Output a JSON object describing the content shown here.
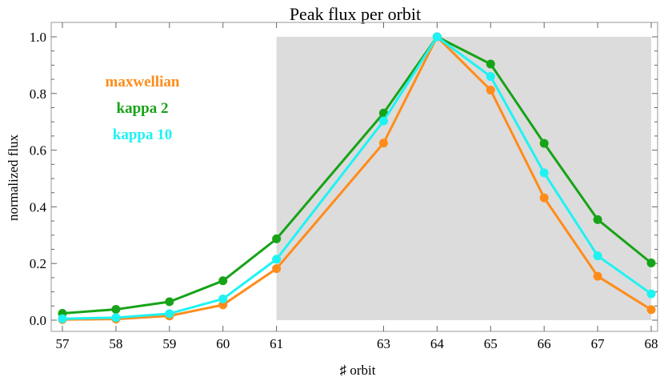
{
  "chart_data": {
    "type": "line",
    "title": "Peak flux per orbit",
    "xlabel": "♯ orbit",
    "ylabel": "normalized flux",
    "x": [
      57,
      58,
      59,
      60,
      61,
      63,
      64,
      65,
      66,
      67,
      68
    ],
    "x_ticks": [
      57,
      58,
      59,
      60,
      61,
      63,
      64,
      65,
      66,
      67,
      68
    ],
    "y_ticks": [
      "0.0",
      "0.2",
      "0.4",
      "0.6",
      "0.8",
      "1.0"
    ],
    "ylim": [
      0,
      1
    ],
    "grid": false,
    "shaded_region": {
      "x_from": 61,
      "x_to": 68,
      "y_from": 0,
      "y_to": 1,
      "color": "#dcdcdc"
    },
    "legend_placement": "top-left",
    "series": [
      {
        "name": "maxwellian",
        "color": "#ff8c1a",
        "values": [
          0.002,
          0.004,
          0.015,
          0.054,
          0.182,
          0.625,
          1.0,
          0.812,
          0.432,
          0.155,
          0.037
        ]
      },
      {
        "name": "kappa 2",
        "color": "#17a317",
        "values": [
          0.024,
          0.038,
          0.065,
          0.139,
          0.287,
          0.731,
          1.0,
          0.904,
          0.624,
          0.355,
          0.202
        ]
      },
      {
        "name": "kappa 10",
        "color": "#1ff2f2",
        "values": [
          0.005,
          0.009,
          0.023,
          0.075,
          0.215,
          0.703,
          1.0,
          0.86,
          0.52,
          0.227,
          0.093
        ]
      }
    ]
  }
}
